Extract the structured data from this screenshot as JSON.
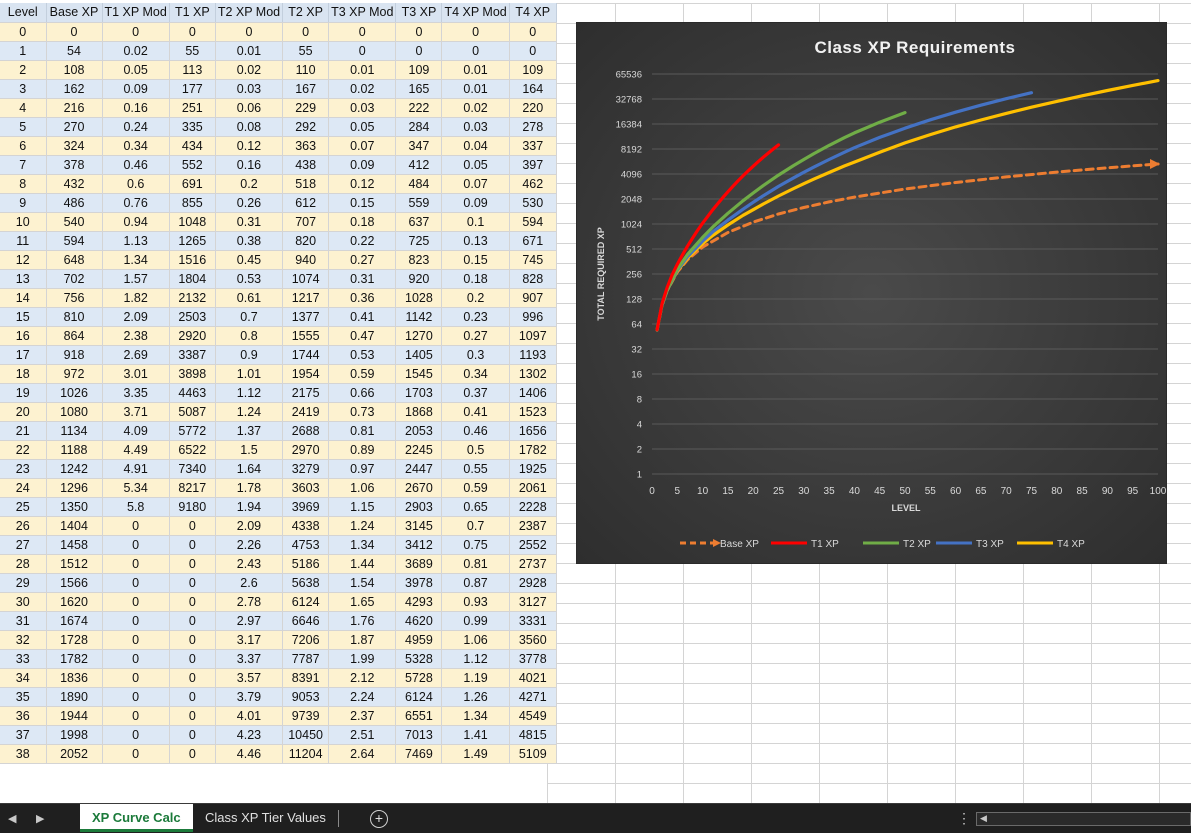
{
  "table": {
    "headers": [
      "Level",
      "Base XP",
      "T1 XP Mod",
      "T1 XP",
      "T2 XP Mod",
      "T2 XP",
      "T3 XP Mod",
      "T3 XP",
      "T4 XP Mod",
      "T4 XP"
    ],
    "rows": [
      [
        "0",
        "0",
        "0",
        "0",
        "0",
        "0",
        "0",
        "0",
        "0",
        "0"
      ],
      [
        "1",
        "54",
        "0.02",
        "55",
        "0.01",
        "55",
        "0",
        "0",
        "0",
        "0"
      ],
      [
        "2",
        "108",
        "0.05",
        "113",
        "0.02",
        "110",
        "0.01",
        "109",
        "0.01",
        "109"
      ],
      [
        "3",
        "162",
        "0.09",
        "177",
        "0.03",
        "167",
        "0.02",
        "165",
        "0.01",
        "164"
      ],
      [
        "4",
        "216",
        "0.16",
        "251",
        "0.06",
        "229",
        "0.03",
        "222",
        "0.02",
        "220"
      ],
      [
        "5",
        "270",
        "0.24",
        "335",
        "0.08",
        "292",
        "0.05",
        "284",
        "0.03",
        "278"
      ],
      [
        "6",
        "324",
        "0.34",
        "434",
        "0.12",
        "363",
        "0.07",
        "347",
        "0.04",
        "337"
      ],
      [
        "7",
        "378",
        "0.46",
        "552",
        "0.16",
        "438",
        "0.09",
        "412",
        "0.05",
        "397"
      ],
      [
        "8",
        "432",
        "0.6",
        "691",
        "0.2",
        "518",
        "0.12",
        "484",
        "0.07",
        "462"
      ],
      [
        "9",
        "486",
        "0.76",
        "855",
        "0.26",
        "612",
        "0.15",
        "559",
        "0.09",
        "530"
      ],
      [
        "10",
        "540",
        "0.94",
        "1048",
        "0.31",
        "707",
        "0.18",
        "637",
        "0.1",
        "594"
      ],
      [
        "11",
        "594",
        "1.13",
        "1265",
        "0.38",
        "820",
        "0.22",
        "725",
        "0.13",
        "671"
      ],
      [
        "12",
        "648",
        "1.34",
        "1516",
        "0.45",
        "940",
        "0.27",
        "823",
        "0.15",
        "745"
      ],
      [
        "13",
        "702",
        "1.57",
        "1804",
        "0.53",
        "1074",
        "0.31",
        "920",
        "0.18",
        "828"
      ],
      [
        "14",
        "756",
        "1.82",
        "2132",
        "0.61",
        "1217",
        "0.36",
        "1028",
        "0.2",
        "907"
      ],
      [
        "15",
        "810",
        "2.09",
        "2503",
        "0.7",
        "1377",
        "0.41",
        "1142",
        "0.23",
        "996"
      ],
      [
        "16",
        "864",
        "2.38",
        "2920",
        "0.8",
        "1555",
        "0.47",
        "1270",
        "0.27",
        "1097"
      ],
      [
        "17",
        "918",
        "2.69",
        "3387",
        "0.9",
        "1744",
        "0.53",
        "1405",
        "0.3",
        "1193"
      ],
      [
        "18",
        "972",
        "3.01",
        "3898",
        "1.01",
        "1954",
        "0.59",
        "1545",
        "0.34",
        "1302"
      ],
      [
        "19",
        "1026",
        "3.35",
        "4463",
        "1.12",
        "2175",
        "0.66",
        "1703",
        "0.37",
        "1406"
      ],
      [
        "20",
        "1080",
        "3.71",
        "5087",
        "1.24",
        "2419",
        "0.73",
        "1868",
        "0.41",
        "1523"
      ],
      [
        "21",
        "1134",
        "4.09",
        "5772",
        "1.37",
        "2688",
        "0.81",
        "2053",
        "0.46",
        "1656"
      ],
      [
        "22",
        "1188",
        "4.49",
        "6522",
        "1.5",
        "2970",
        "0.89",
        "2245",
        "0.5",
        "1782"
      ],
      [
        "23",
        "1242",
        "4.91",
        "7340",
        "1.64",
        "3279",
        "0.97",
        "2447",
        "0.55",
        "1925"
      ],
      [
        "24",
        "1296",
        "5.34",
        "8217",
        "1.78",
        "3603",
        "1.06",
        "2670",
        "0.59",
        "2061"
      ],
      [
        "25",
        "1350",
        "5.8",
        "9180",
        "1.94",
        "3969",
        "1.15",
        "2903",
        "0.65",
        "2228"
      ],
      [
        "26",
        "1404",
        "0",
        "0",
        "2.09",
        "4338",
        "1.24",
        "3145",
        "0.7",
        "2387"
      ],
      [
        "27",
        "1458",
        "0",
        "0",
        "2.26",
        "4753",
        "1.34",
        "3412",
        "0.75",
        "2552"
      ],
      [
        "28",
        "1512",
        "0",
        "0",
        "2.43",
        "5186",
        "1.44",
        "3689",
        "0.81",
        "2737"
      ],
      [
        "29",
        "1566",
        "0",
        "0",
        "2.6",
        "5638",
        "1.54",
        "3978",
        "0.87",
        "2928"
      ],
      [
        "30",
        "1620",
        "0",
        "0",
        "2.78",
        "6124",
        "1.65",
        "4293",
        "0.93",
        "3127"
      ],
      [
        "31",
        "1674",
        "0",
        "0",
        "2.97",
        "6646",
        "1.76",
        "4620",
        "0.99",
        "3331"
      ],
      [
        "32",
        "1728",
        "0",
        "0",
        "3.17",
        "7206",
        "1.87",
        "4959",
        "1.06",
        "3560"
      ],
      [
        "33",
        "1782",
        "0",
        "0",
        "3.37",
        "7787",
        "1.99",
        "5328",
        "1.12",
        "3778"
      ],
      [
        "34",
        "1836",
        "0",
        "0",
        "3.57",
        "8391",
        "2.12",
        "5728",
        "1.19",
        "4021"
      ],
      [
        "35",
        "1890",
        "0",
        "0",
        "3.79",
        "9053",
        "2.24",
        "6124",
        "1.26",
        "4271"
      ],
      [
        "36",
        "1944",
        "0",
        "0",
        "4.01",
        "9739",
        "2.37",
        "6551",
        "1.34",
        "4549"
      ],
      [
        "37",
        "1998",
        "0",
        "0",
        "4.23",
        "10450",
        "2.51",
        "7013",
        "1.41",
        "4815"
      ],
      [
        "38",
        "2052",
        "0",
        "0",
        "4.46",
        "11204",
        "2.64",
        "7469",
        "1.49",
        "5109"
      ]
    ]
  },
  "chart_data": {
    "type": "line",
    "title": "Class XP Requirements",
    "xlabel": "LEVEL",
    "ylabel": "TOTAL REQUIRED XP",
    "xlim": [
      0,
      100
    ],
    "x_ticks": [
      0,
      5,
      10,
      15,
      20,
      25,
      30,
      35,
      40,
      45,
      50,
      55,
      60,
      65,
      70,
      75,
      80,
      85,
      90,
      95,
      100
    ],
    "y_scale": "log2",
    "y_ticks": [
      1,
      2,
      4,
      8,
      16,
      32,
      64,
      128,
      256,
      512,
      1024,
      2048,
      4096,
      8192,
      16384,
      32768,
      65536
    ],
    "legend_position": "bottom",
    "grid": "horizontal",
    "series": [
      {
        "name": "Base XP",
        "color": "#ed7d31",
        "dash": true,
        "x": [
          1,
          2,
          3,
          5,
          7,
          10,
          15,
          20,
          25,
          30,
          35,
          40,
          50,
          60,
          70,
          80,
          90,
          100
        ],
        "y": [
          54,
          108,
          162,
          270,
          378,
          540,
          810,
          1080,
          1350,
          1620,
          1890,
          2160,
          2700,
          3240,
          3780,
          4320,
          4860,
          5400
        ]
      },
      {
        "name": "T1 XP",
        "color": "#ff0000",
        "dash": false,
        "x": [
          1,
          2,
          3,
          4,
          5,
          6,
          7,
          8,
          9,
          10,
          11,
          12,
          13,
          14,
          15,
          16,
          17,
          18,
          19,
          20,
          21,
          22,
          23,
          24,
          25
        ],
        "y": [
          55,
          113,
          177,
          251,
          335,
          434,
          552,
          691,
          855,
          1048,
          1265,
          1516,
          1804,
          2132,
          2503,
          2920,
          3387,
          3898,
          4463,
          5087,
          5772,
          6522,
          7340,
          8217,
          9180
        ]
      },
      {
        "name": "T2 XP",
        "color": "#70ad47",
        "dash": false,
        "x": [
          1,
          2,
          3,
          5,
          7,
          10,
          12,
          15,
          18,
          20,
          22,
          25,
          28,
          30,
          32,
          35,
          38,
          40,
          45,
          50
        ],
        "y": [
          55,
          110,
          167,
          292,
          438,
          707,
          940,
          1377,
          1954,
          2419,
          2970,
          3969,
          5186,
          6124,
          7206,
          9053,
          11204,
          12800,
          17200,
          22500
        ]
      },
      {
        "name": "T3 XP",
        "color": "#4472c4",
        "dash": false,
        "x": [
          2,
          3,
          5,
          7,
          10,
          12,
          15,
          18,
          20,
          22,
          25,
          28,
          30,
          32,
          35,
          38,
          40,
          45,
          50,
          55,
          60,
          65,
          70,
          75
        ],
        "y": [
          109,
          165,
          284,
          412,
          637,
          823,
          1142,
          1545,
          1868,
          2245,
          2903,
          3689,
          4293,
          4959,
          6124,
          7469,
          8500,
          11300,
          14600,
          18400,
          22700,
          27600,
          33000,
          39000
        ]
      },
      {
        "name": "T4 XP",
        "color": "#ffc000",
        "dash": false,
        "x": [
          2,
          3,
          5,
          7,
          10,
          12,
          15,
          18,
          20,
          22,
          25,
          28,
          30,
          32,
          35,
          38,
          40,
          45,
          50,
          55,
          60,
          65,
          70,
          75,
          80,
          85,
          90,
          95,
          100
        ],
        "y": [
          109,
          164,
          278,
          397,
          594,
          745,
          996,
          1302,
          1523,
          1782,
          2228,
          2737,
          3127,
          3560,
          4271,
          5109,
          5700,
          7500,
          9700,
          12200,
          15100,
          18300,
          22000,
          26100,
          30700,
          35800,
          41500,
          47800,
          54600
        ]
      }
    ]
  },
  "tabs": {
    "items": [
      {
        "label": "XP Curve Calc",
        "active": true
      },
      {
        "label": "Class XP Tier Values",
        "active": false
      }
    ],
    "add_symbol": "+",
    "more_symbol": "⋮"
  }
}
